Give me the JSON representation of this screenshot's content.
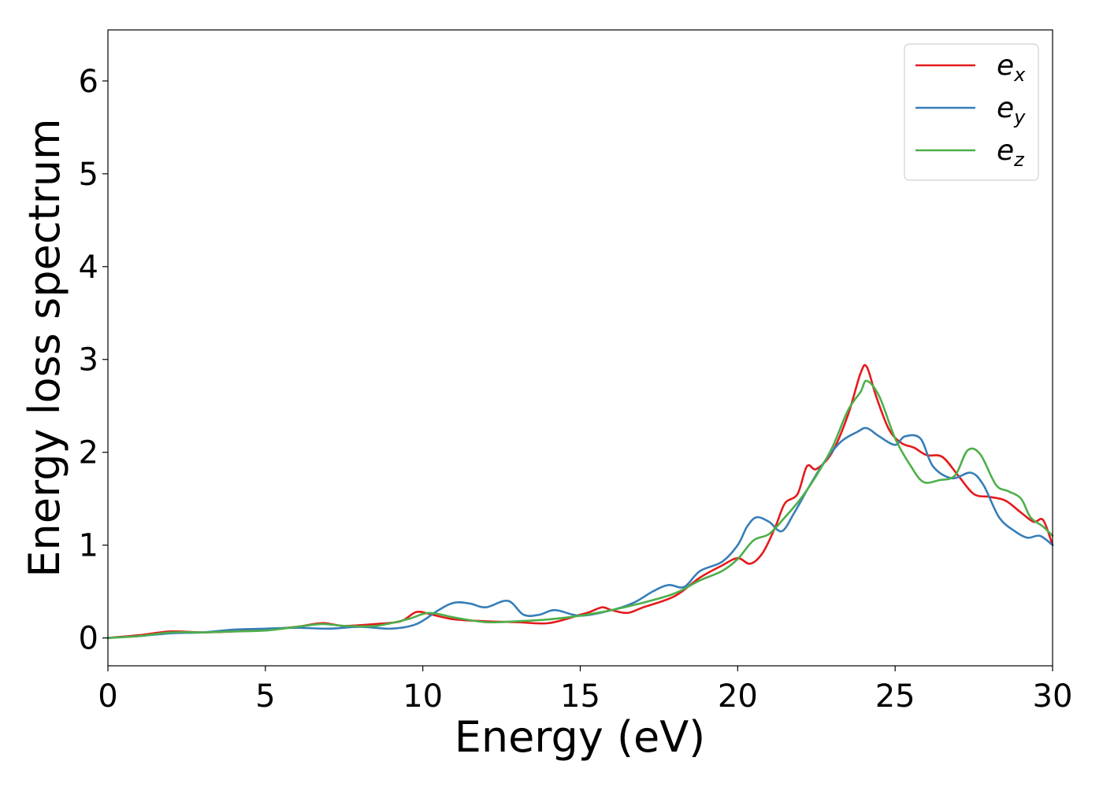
{
  "chart_data": {
    "type": "line",
    "xlabel": "Energy (eV)",
    "ylabel": "Energy loss spectrum",
    "xlim": [
      0,
      30
    ],
    "ylim": [
      -0.3,
      6.55
    ],
    "xticks": [
      "0",
      "5",
      "10",
      "15",
      "20",
      "25",
      "30"
    ],
    "yticks": [
      "0",
      "1",
      "2",
      "3",
      "4",
      "5",
      "6"
    ],
    "grid": false,
    "legend_position": "top-right",
    "series": [
      {
        "name": "e_x",
        "label_base": "e",
        "label_sub": "x",
        "color": "#e41a1c",
        "x": [
          0,
          1,
          2,
          3,
          4,
          5,
          6,
          6.8,
          7.5,
          8.5,
          9.3,
          9.8,
          10.3,
          11,
          12,
          13,
          14,
          15,
          15.3,
          15.7,
          16,
          16.5,
          17,
          18,
          18.8,
          19.5,
          20,
          20.4,
          20.8,
          21.2,
          21.5,
          21.9,
          22.2,
          22.5,
          23,
          23.5,
          23.9,
          24.1,
          24.4,
          24.8,
          25.2,
          25.6,
          26,
          26.5,
          27,
          27.5,
          28,
          28.5,
          29,
          29.4,
          29.7,
          30
        ],
        "y": [
          0,
          0.03,
          0.07,
          0.06,
          0.07,
          0.09,
          0.12,
          0.16,
          0.13,
          0.15,
          0.18,
          0.28,
          0.25,
          0.2,
          0.18,
          0.17,
          0.16,
          0.25,
          0.28,
          0.33,
          0.3,
          0.27,
          0.33,
          0.45,
          0.65,
          0.78,
          0.86,
          0.8,
          0.92,
          1.2,
          1.45,
          1.55,
          1.85,
          1.82,
          2.0,
          2.4,
          2.85,
          2.92,
          2.6,
          2.25,
          2.1,
          2.05,
          1.97,
          1.95,
          1.75,
          1.55,
          1.52,
          1.48,
          1.35,
          1.25,
          1.27,
          1.0
        ]
      },
      {
        "name": "e_y",
        "label_base": "e",
        "label_sub": "y",
        "color": "#377eb8",
        "x": [
          0,
          1,
          2,
          3,
          4,
          5,
          6,
          7,
          8,
          9,
          9.8,
          10.5,
          11,
          11.5,
          12,
          12.7,
          13.2,
          13.7,
          14.2,
          15,
          16,
          16.7,
          17.3,
          17.8,
          18.3,
          18.8,
          19.5,
          20,
          20.3,
          20.6,
          21,
          21.4,
          21.8,
          22.3,
          22.8,
          23.3,
          23.8,
          24.1,
          24.5,
          25,
          25.3,
          25.8,
          26.2,
          26.8,
          27.4,
          27.8,
          28.3,
          28.8,
          29.2,
          29.6,
          30
        ],
        "y": [
          0,
          0.02,
          0.05,
          0.06,
          0.09,
          0.1,
          0.11,
          0.1,
          0.12,
          0.1,
          0.15,
          0.3,
          0.38,
          0.37,
          0.33,
          0.4,
          0.25,
          0.25,
          0.3,
          0.24,
          0.3,
          0.38,
          0.5,
          0.57,
          0.55,
          0.72,
          0.82,
          1.0,
          1.2,
          1.3,
          1.25,
          1.15,
          1.35,
          1.65,
          1.92,
          2.12,
          2.22,
          2.26,
          2.17,
          2.08,
          2.17,
          2.15,
          1.85,
          1.72,
          1.78,
          1.65,
          1.3,
          1.15,
          1.08,
          1.1,
          1.0
        ]
      },
      {
        "name": "e_z",
        "label_base": "e",
        "label_sub": "z",
        "color": "#4daf4a",
        "x": [
          0,
          1,
          2,
          3,
          4,
          5,
          6,
          6.8,
          7.5,
          8.5,
          9.5,
          10.2,
          11,
          12,
          13,
          14,
          15,
          16,
          17,
          18,
          18.8,
          19.5,
          20,
          20.5,
          21,
          21.5,
          22,
          22.5,
          23,
          23.5,
          23.9,
          24.1,
          24.5,
          25,
          25.5,
          25.9,
          26.4,
          26.9,
          27.3,
          27.7,
          28.2,
          28.6,
          29,
          29.3,
          29.7,
          30
        ],
        "y": [
          0,
          0.02,
          0.06,
          0.06,
          0.07,
          0.08,
          0.12,
          0.15,
          0.13,
          0.13,
          0.2,
          0.27,
          0.22,
          0.17,
          0.18,
          0.2,
          0.24,
          0.3,
          0.38,
          0.48,
          0.62,
          0.72,
          0.85,
          1.05,
          1.12,
          1.3,
          1.5,
          1.75,
          2.05,
          2.45,
          2.65,
          2.77,
          2.6,
          2.15,
          1.85,
          1.68,
          1.7,
          1.75,
          2.02,
          1.98,
          1.65,
          1.58,
          1.5,
          1.3,
          1.2,
          1.1
        ]
      }
    ]
  }
}
